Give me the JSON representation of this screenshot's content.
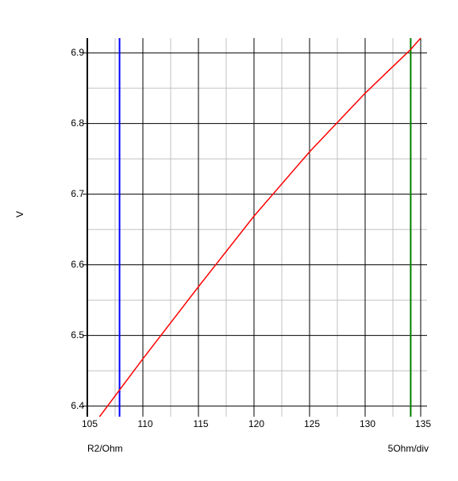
{
  "chart_data": {
    "type": "line",
    "y_label": "V",
    "x_label": "R2/Ohm",
    "x_scale_label": "5Ohm/div",
    "xlim": [
      105,
      135
    ],
    "ylim": [
      6.385,
      6.921
    ],
    "xticks": [
      105,
      110,
      115,
      120,
      125,
      130,
      135
    ],
    "yticks": [
      6.4,
      6.5,
      6.6,
      6.7,
      6.8,
      6.9
    ],
    "x_minor_ticks": [
      107.5,
      112.5,
      117.5,
      122.5,
      127.5,
      132.5
    ],
    "y_minor_ticks": [
      6.45,
      6.55,
      6.65,
      6.75,
      6.85
    ],
    "grid": true,
    "cursors": [
      {
        "color": "#0000ff",
        "x": 107.9
      },
      {
        "color": "#008000",
        "x": 134.1
      }
    ],
    "series": [
      {
        "color": "#ff0000",
        "x": [
          106.1,
          110,
          115,
          120,
          125,
          130,
          134.1,
          135
        ],
        "values": [
          6.385,
          6.467,
          6.569,
          6.669,
          6.76,
          6.843,
          6.905,
          6.921
        ]
      }
    ]
  }
}
